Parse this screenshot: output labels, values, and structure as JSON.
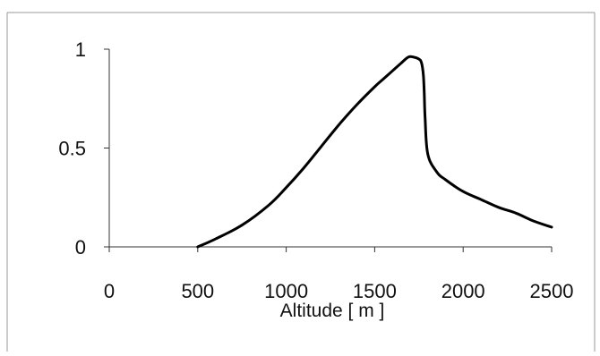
{
  "chart_data": {
    "type": "line",
    "title": "",
    "xlabel": "Altitude [ m ]",
    "ylabel": "",
    "xlim": [
      0,
      2500
    ],
    "ylim": [
      0,
      1
    ],
    "x_ticks": [
      0,
      500,
      1000,
      1500,
      2000,
      2500
    ],
    "x_tick_labels": [
      "0",
      "500",
      "1000",
      "1500",
      "2000",
      "2500"
    ],
    "y_ticks": [
      0,
      0.5,
      1
    ],
    "y_tick_labels": [
      "0",
      "0.5",
      "1"
    ],
    "grid": false,
    "legend": "none",
    "series": [
      {
        "color": "#000000",
        "x": [
          500,
          600,
          750,
          900,
          1000,
          1100,
          1200,
          1300,
          1400,
          1500,
          1550,
          1600,
          1650,
          1690,
          1720,
          1750,
          1765,
          1775,
          1780,
          1785,
          1800,
          1850,
          1900,
          2000,
          2100,
          2200,
          2300,
          2400,
          2500
        ],
        "y": [
          0,
          0.04,
          0.11,
          0.21,
          0.3,
          0.4,
          0.51,
          0.62,
          0.72,
          0.81,
          0.85,
          0.89,
          0.93,
          0.96,
          0.96,
          0.95,
          0.93,
          0.87,
          0.78,
          0.65,
          0.47,
          0.38,
          0.34,
          0.28,
          0.24,
          0.2,
          0.17,
          0.13,
          0.1
        ]
      }
    ]
  }
}
